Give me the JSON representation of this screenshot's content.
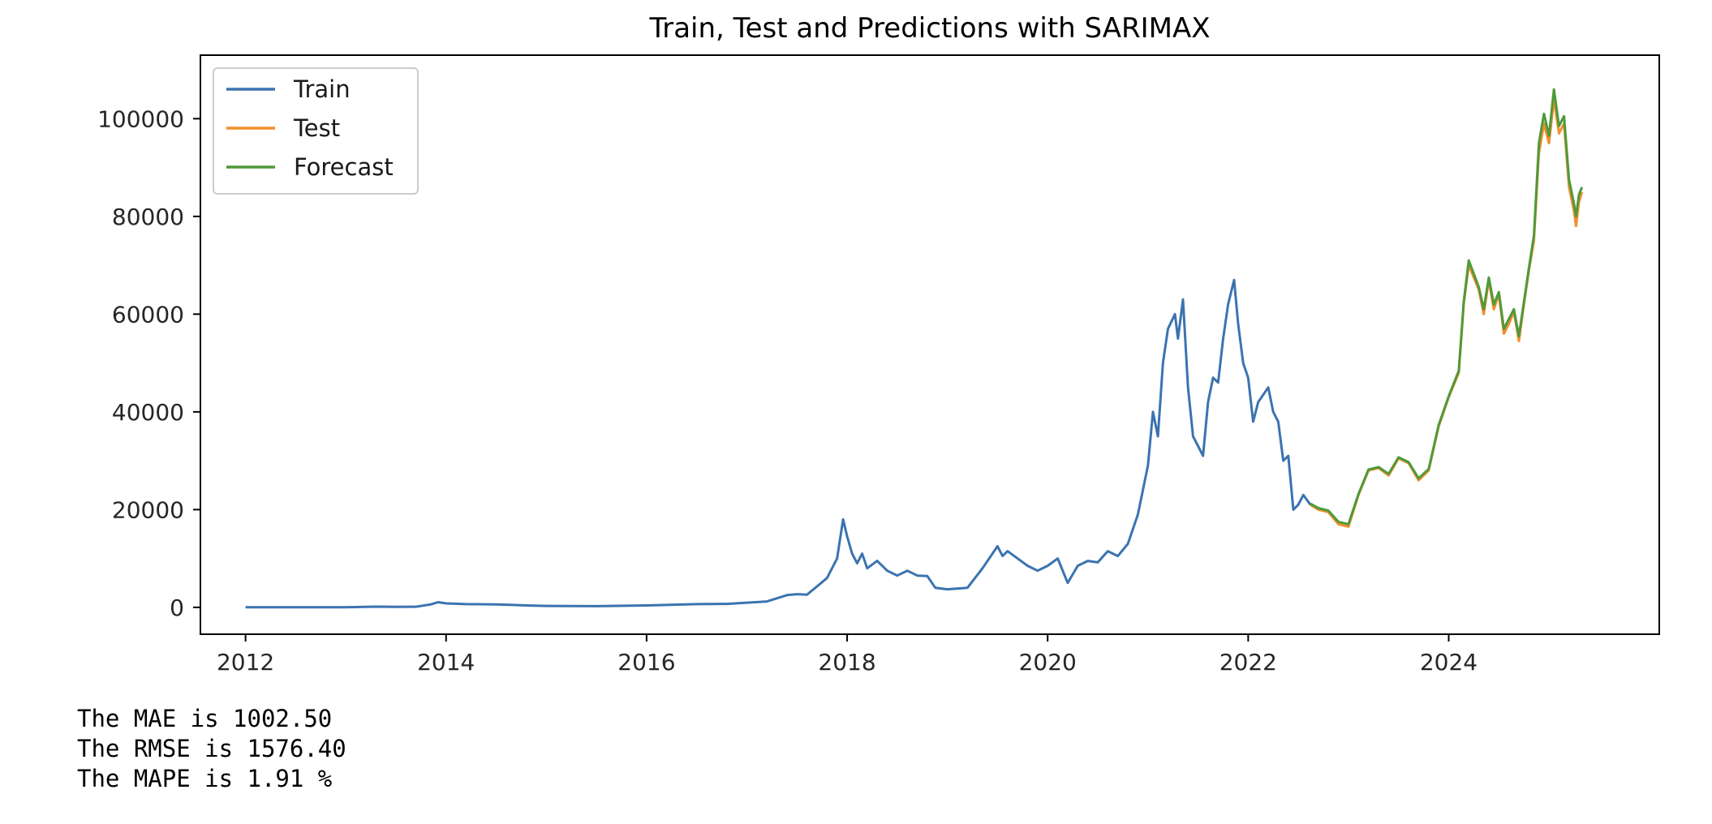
{
  "chart_data": {
    "type": "line",
    "title": "Train, Test and Predictions with SARIMAX",
    "xlabel": "",
    "ylabel": "",
    "xlim": [
      2011.55,
      2026.1
    ],
    "ylim": [
      -5500,
      113000
    ],
    "x_ticks": [
      2012,
      2014,
      2016,
      2018,
      2020,
      2022,
      2024
    ],
    "y_ticks": [
      0,
      20000,
      40000,
      60000,
      80000,
      100000
    ],
    "grid": false,
    "legend": {
      "placement": "top-left",
      "entries": [
        "Train",
        "Test",
        "Forecast"
      ]
    },
    "series": [
      {
        "name": "Train",
        "color": "#3b73b0",
        "points": [
          [
            2012.0,
            5
          ],
          [
            2012.5,
            7
          ],
          [
            2013.0,
            14
          ],
          [
            2013.3,
            140
          ],
          [
            2013.5,
            95
          ],
          [
            2013.7,
            130
          ],
          [
            2013.85,
            600
          ],
          [
            2013.92,
            1050
          ],
          [
            2014.0,
            800
          ],
          [
            2014.2,
            650
          ],
          [
            2014.5,
            600
          ],
          [
            2014.8,
            400
          ],
          [
            2015.0,
            300
          ],
          [
            2015.5,
            250
          ],
          [
            2016.0,
            400
          ],
          [
            2016.5,
            650
          ],
          [
            2016.8,
            700
          ],
          [
            2017.0,
            950
          ],
          [
            2017.2,
            1200
          ],
          [
            2017.4,
            2500
          ],
          [
            2017.5,
            2700
          ],
          [
            2017.6,
            2600
          ],
          [
            2017.7,
            4300
          ],
          [
            2017.8,
            6000
          ],
          [
            2017.9,
            10000
          ],
          [
            2017.96,
            18000
          ],
          [
            2018.0,
            14500
          ],
          [
            2018.05,
            11000
          ],
          [
            2018.1,
            9000
          ],
          [
            2018.15,
            11000
          ],
          [
            2018.2,
            8000
          ],
          [
            2018.3,
            9500
          ],
          [
            2018.4,
            7500
          ],
          [
            2018.5,
            6500
          ],
          [
            2018.6,
            7500
          ],
          [
            2018.7,
            6500
          ],
          [
            2018.8,
            6400
          ],
          [
            2018.88,
            4000
          ],
          [
            2019.0,
            3700
          ],
          [
            2019.2,
            4000
          ],
          [
            2019.35,
            8000
          ],
          [
            2019.5,
            12500
          ],
          [
            2019.55,
            10500
          ],
          [
            2019.6,
            11500
          ],
          [
            2019.7,
            10000
          ],
          [
            2019.8,
            8500
          ],
          [
            2019.9,
            7500
          ],
          [
            2020.0,
            8500
          ],
          [
            2020.1,
            10000
          ],
          [
            2020.2,
            5000
          ],
          [
            2020.3,
            8500
          ],
          [
            2020.4,
            9500
          ],
          [
            2020.5,
            9200
          ],
          [
            2020.6,
            11500
          ],
          [
            2020.7,
            10500
          ],
          [
            2020.8,
            13000
          ],
          [
            2020.9,
            19000
          ],
          [
            2021.0,
            29000
          ],
          [
            2021.05,
            40000
          ],
          [
            2021.1,
            35000
          ],
          [
            2021.15,
            50000
          ],
          [
            2021.2,
            57000
          ],
          [
            2021.27,
            60000
          ],
          [
            2021.3,
            55000
          ],
          [
            2021.35,
            63000
          ],
          [
            2021.4,
            45000
          ],
          [
            2021.45,
            35000
          ],
          [
            2021.5,
            33000
          ],
          [
            2021.55,
            31000
          ],
          [
            2021.6,
            42000
          ],
          [
            2021.65,
            47000
          ],
          [
            2021.7,
            46000
          ],
          [
            2021.75,
            55000
          ],
          [
            2021.8,
            62000
          ],
          [
            2021.86,
            67000
          ],
          [
            2021.9,
            58000
          ],
          [
            2021.95,
            50000
          ],
          [
            2022.0,
            47000
          ],
          [
            2022.05,
            38000
          ],
          [
            2022.1,
            42000
          ],
          [
            2022.2,
            45000
          ],
          [
            2022.25,
            40000
          ],
          [
            2022.3,
            38000
          ],
          [
            2022.35,
            30000
          ],
          [
            2022.4,
            31000
          ],
          [
            2022.45,
            20000
          ],
          [
            2022.5,
            21000
          ],
          [
            2022.55,
            23000
          ],
          [
            2022.62,
            21000
          ]
        ]
      },
      {
        "name": "Test",
        "color": "#f28e2b",
        "points": [
          [
            2022.62,
            21000
          ],
          [
            2022.7,
            20000
          ],
          [
            2022.8,
            19500
          ],
          [
            2022.9,
            17000
          ],
          [
            2023.0,
            16500
          ],
          [
            2023.1,
            23000
          ],
          [
            2023.2,
            28000
          ],
          [
            2023.3,
            28500
          ],
          [
            2023.4,
            27000
          ],
          [
            2023.5,
            30500
          ],
          [
            2023.6,
            29500
          ],
          [
            2023.7,
            26000
          ],
          [
            2023.8,
            28000
          ],
          [
            2023.9,
            37000
          ],
          [
            2024.0,
            43000
          ],
          [
            2024.1,
            48000
          ],
          [
            2024.15,
            62000
          ],
          [
            2024.2,
            70000
          ],
          [
            2024.3,
            65000
          ],
          [
            2024.35,
            60000
          ],
          [
            2024.4,
            67000
          ],
          [
            2024.45,
            61000
          ],
          [
            2024.5,
            64000
          ],
          [
            2024.55,
            56000
          ],
          [
            2024.6,
            58000
          ],
          [
            2024.65,
            60500
          ],
          [
            2024.7,
            54500
          ],
          [
            2024.75,
            62000
          ],
          [
            2024.8,
            69000
          ],
          [
            2024.85,
            75000
          ],
          [
            2024.9,
            93000
          ],
          [
            2024.95,
            99000
          ],
          [
            2025.0,
            95000
          ],
          [
            2025.05,
            104000
          ],
          [
            2025.1,
            97000
          ],
          [
            2025.15,
            99000
          ],
          [
            2025.2,
            86000
          ],
          [
            2025.25,
            81000
          ],
          [
            2025.27,
            78000
          ],
          [
            2025.3,
            83000
          ],
          [
            2025.33,
            85000
          ]
        ]
      },
      {
        "name": "Forecast",
        "color": "#4e9a3a",
        "points": [
          [
            2022.62,
            21200
          ],
          [
            2022.7,
            20300
          ],
          [
            2022.8,
            19800
          ],
          [
            2022.9,
            17500
          ],
          [
            2023.0,
            17000
          ],
          [
            2023.1,
            23200
          ],
          [
            2023.2,
            28200
          ],
          [
            2023.3,
            28700
          ],
          [
            2023.4,
            27300
          ],
          [
            2023.5,
            30700
          ],
          [
            2023.6,
            29700
          ],
          [
            2023.7,
            26400
          ],
          [
            2023.8,
            28300
          ],
          [
            2023.9,
            37300
          ],
          [
            2024.0,
            43200
          ],
          [
            2024.1,
            48400
          ],
          [
            2024.15,
            62500
          ],
          [
            2024.2,
            71000
          ],
          [
            2024.3,
            65500
          ],
          [
            2024.35,
            61000
          ],
          [
            2024.4,
            67500
          ],
          [
            2024.45,
            62000
          ],
          [
            2024.5,
            64500
          ],
          [
            2024.55,
            57000
          ],
          [
            2024.6,
            59000
          ],
          [
            2024.65,
            61000
          ],
          [
            2024.7,
            55500
          ],
          [
            2024.75,
            62500
          ],
          [
            2024.8,
            69500
          ],
          [
            2024.85,
            76000
          ],
          [
            2024.9,
            95000
          ],
          [
            2024.95,
            101000
          ],
          [
            2025.0,
            96500
          ],
          [
            2025.05,
            106000
          ],
          [
            2025.1,
            98500
          ],
          [
            2025.15,
            100500
          ],
          [
            2025.2,
            87500
          ],
          [
            2025.25,
            82500
          ],
          [
            2025.27,
            80000
          ],
          [
            2025.3,
            84500
          ],
          [
            2025.33,
            86000
          ]
        ]
      }
    ]
  },
  "metrics": [
    "The MAE is 1002.50",
    "The RMSE is 1576.40",
    "The MAPE is 1.91 %"
  ]
}
